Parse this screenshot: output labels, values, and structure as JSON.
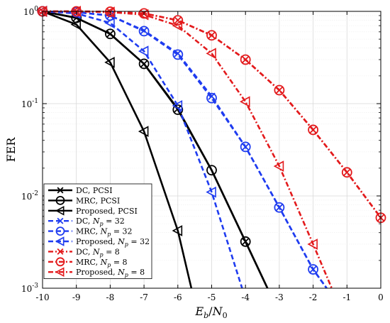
{
  "chart_data": {
    "type": "line",
    "title": "",
    "xlabel": "E_b/N_0",
    "ylabel": "FER",
    "xlim": [
      -10,
      0
    ],
    "ylim": [
      0.001,
      1
    ],
    "yscale": "log",
    "grid": true,
    "legend_position": "bottom-left",
    "x_ticks": [
      -10,
      -9,
      -8,
      -7,
      -6,
      -5,
      -4,
      -3,
      -2,
      -1,
      0
    ],
    "x_tick_labels": [
      "-10",
      "-9",
      "-8",
      "-7",
      "-6",
      "-5",
      "-4",
      "-3",
      "-2",
      "-1",
      "0"
    ],
    "y_ticks": [
      0.001,
      0.01,
      0.1,
      1
    ],
    "y_tick_labels": [
      {
        "base": "10",
        "exp": "-3"
      },
      {
        "base": "10",
        "exp": "-2"
      },
      {
        "base": "10",
        "exp": "-1"
      },
      {
        "base": "10",
        "exp": "0"
      }
    ],
    "series": [
      {
        "name": "DC, PCSI",
        "color": "#000000",
        "dash": "solid",
        "marker": "x",
        "marker_x": [
          -10,
          -9,
          -8,
          -7,
          -6,
          -4
        ],
        "x": [
          -10,
          -9,
          -8,
          -7,
          -6,
          -5,
          -4,
          -3.35
        ],
        "y": [
          1,
          0.85,
          0.57,
          0.27,
          0.088,
          0.019,
          0.0032,
          0.001
        ]
      },
      {
        "name": "MRC, PCSI",
        "color": "#000000",
        "dash": "solid",
        "marker": "circle",
        "marker_x": [
          -10,
          -9,
          -8,
          -7,
          -6,
          -5,
          -4
        ],
        "x": [
          -10,
          -9,
          -8,
          -7,
          -6,
          -5,
          -4,
          -3.35
        ],
        "y": [
          1,
          0.85,
          0.57,
          0.27,
          0.086,
          0.019,
          0.0032,
          0.001
        ]
      },
      {
        "name": "Proposed, PCSI",
        "color": "#000000",
        "dash": "solid",
        "marker": "triangle-left",
        "marker_x": [
          -10,
          -9,
          -8,
          -7,
          -6
        ],
        "x": [
          -10,
          -9,
          -8,
          -7,
          -6,
          -5.6
        ],
        "y": [
          1,
          0.72,
          0.28,
          0.05,
          0.0042,
          0.001
        ]
      },
      {
        "name": "DC, N_p = 32",
        "color": "#1f3cf0",
        "dash": "dashed",
        "marker": "x",
        "marker_x": [
          -10,
          -9,
          -8,
          -7,
          -6,
          -5,
          -4,
          -3,
          -2
        ],
        "x": [
          -10,
          -9,
          -8,
          -7,
          -6,
          -5,
          -4,
          -3,
          -2,
          -1.6
        ],
        "y": [
          1,
          0.98,
          0.9,
          0.62,
          0.35,
          0.12,
          0.034,
          0.0075,
          0.0016,
          0.001
        ]
      },
      {
        "name": "MRC, N_p = 32",
        "color": "#1f3cf0",
        "dash": "dashed",
        "marker": "circle",
        "marker_x": [
          -10,
          -9,
          -8,
          -7,
          -6,
          -5,
          -4,
          -3,
          -2
        ],
        "x": [
          -10,
          -9,
          -8,
          -7,
          -6,
          -5,
          -4,
          -3,
          -2,
          -1.6
        ],
        "y": [
          1,
          0.98,
          0.9,
          0.61,
          0.34,
          0.115,
          0.034,
          0.0075,
          0.0016,
          0.001
        ]
      },
      {
        "name": "Proposed, N_p = 32",
        "color": "#1f3cf0",
        "dash": "dashed",
        "marker": "triangle-left",
        "marker_x": [
          -10,
          -9,
          -8,
          -7,
          -6,
          -5
        ],
        "x": [
          -10,
          -9,
          -8,
          -7,
          -6,
          -5,
          -4.1
        ],
        "y": [
          1,
          0.95,
          0.75,
          0.37,
          0.095,
          0.011,
          0.001
        ]
      },
      {
        "name": "DC, N_p = 8",
        "color": "#e31a1c",
        "dash": "dashdot",
        "marker": "x",
        "marker_x": [
          -10,
          -9,
          -8,
          -7,
          -6,
          -5,
          -4,
          -3,
          -2,
          -1,
          0
        ],
        "x": [
          -10,
          -9,
          -8,
          -7,
          -6,
          -5,
          -4,
          -3,
          -2,
          -1,
          0
        ],
        "y": [
          1,
          1,
          0.99,
          0.95,
          0.8,
          0.55,
          0.3,
          0.14,
          0.052,
          0.018,
          0.0058
        ]
      },
      {
        "name": "MRC, N_p = 8",
        "color": "#e31a1c",
        "dash": "dashdot",
        "marker": "circle",
        "marker_x": [
          -10,
          -9,
          -8,
          -7,
          -6,
          -5,
          -4,
          -3,
          -2,
          -1,
          0
        ],
        "x": [
          -10,
          -9,
          -8,
          -7,
          -6,
          -5,
          -4,
          -3,
          -2,
          -1,
          0
        ],
        "y": [
          1,
          1,
          0.99,
          0.95,
          0.8,
          0.55,
          0.3,
          0.14,
          0.052,
          0.018,
          0.0058
        ]
      },
      {
        "name": "Proposed, N_p = 8",
        "color": "#e31a1c",
        "dash": "dashdot",
        "marker": "triangle-left",
        "marker_x": [
          -10,
          -9,
          -8,
          -7,
          -6,
          -5,
          -4,
          -3,
          -2
        ],
        "x": [
          -10,
          -9,
          -8,
          -7,
          -6,
          -5,
          -4,
          -3,
          -2,
          -1.45
        ],
        "y": [
          1,
          1,
          0.98,
          0.92,
          0.7,
          0.35,
          0.105,
          0.021,
          0.003,
          0.001
        ]
      }
    ]
  },
  "legend": {
    "items": [
      {
        "plain": "DC, PCSI"
      },
      {
        "plain": "MRC, PCSI"
      },
      {
        "plain": "Proposed, PCSI"
      },
      {
        "prefix": "DC, ",
        "var": "N",
        "sub": "p",
        "suffix": " = 32"
      },
      {
        "prefix": "MRC, ",
        "var": "N",
        "sub": "p",
        "suffix": " = 32"
      },
      {
        "prefix": "Proposed, ",
        "var": "N",
        "sub": "p",
        "suffix": " = 32"
      },
      {
        "prefix": "DC, ",
        "var": "N",
        "sub": "p",
        "suffix": " = 8"
      },
      {
        "prefix": "MRC, ",
        "var": "N",
        "sub": "p",
        "suffix": " = 8"
      },
      {
        "prefix": "Proposed, ",
        "var": "N",
        "sub": "p",
        "suffix": " = 8"
      }
    ]
  },
  "axes": {
    "ylabel": "FER",
    "xlabel": {
      "var1": "E",
      "sub1": "b",
      "slash": "/",
      "var2": "N",
      "sub2": "0"
    }
  }
}
